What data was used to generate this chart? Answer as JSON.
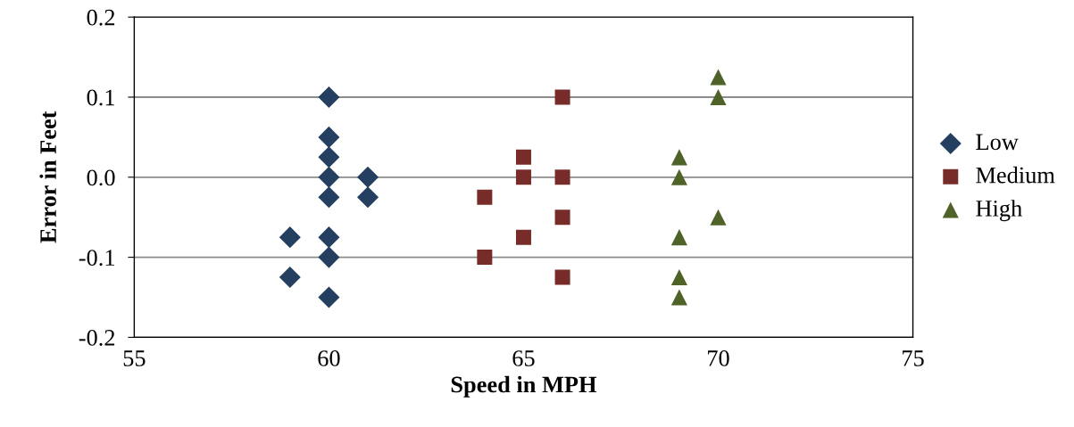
{
  "chart_data": {
    "type": "scatter",
    "xlabel": "Speed in MPH",
    "ylabel": "Error in Feet",
    "xlim": [
      55,
      75
    ],
    "xticks": [
      55,
      60,
      65,
      70,
      75
    ],
    "ylim": [
      -0.2,
      0.2
    ],
    "yticks": [
      -0.2,
      -0.1,
      {
        "value": 0,
        "label": "0.0"
      },
      0.1,
      0.2
    ],
    "grid": "y",
    "legend": "right",
    "series": [
      {
        "name": "Low",
        "color": "#243f60",
        "marker": "diamond",
        "x": [
          60,
          60,
          60,
          60,
          60,
          60,
          60,
          60,
          61,
          61,
          59,
          59
        ],
        "values": [
          0.1,
          0.05,
          0.025,
          0,
          -0.025,
          -0.075,
          -0.1,
          -0.15,
          0,
          -0.025,
          -0.075,
          -0.125
        ]
      },
      {
        "name": "Medium",
        "color": "#772c2a",
        "marker": "square",
        "x": [
          64,
          64,
          65,
          65,
          65,
          66,
          66,
          66,
          66
        ],
        "values": [
          -0.025,
          -0.1,
          0.025,
          0,
          -0.075,
          0.1,
          0,
          -0.05,
          -0.125
        ]
      },
      {
        "name": "High",
        "color": "#4f6228",
        "marker": "triangle",
        "x": [
          69,
          69,
          69,
          69,
          69,
          70,
          70,
          70
        ],
        "values": [
          0.025,
          0,
          -0.075,
          -0.125,
          -0.15,
          0.125,
          0.1,
          -0.05
        ]
      }
    ]
  }
}
